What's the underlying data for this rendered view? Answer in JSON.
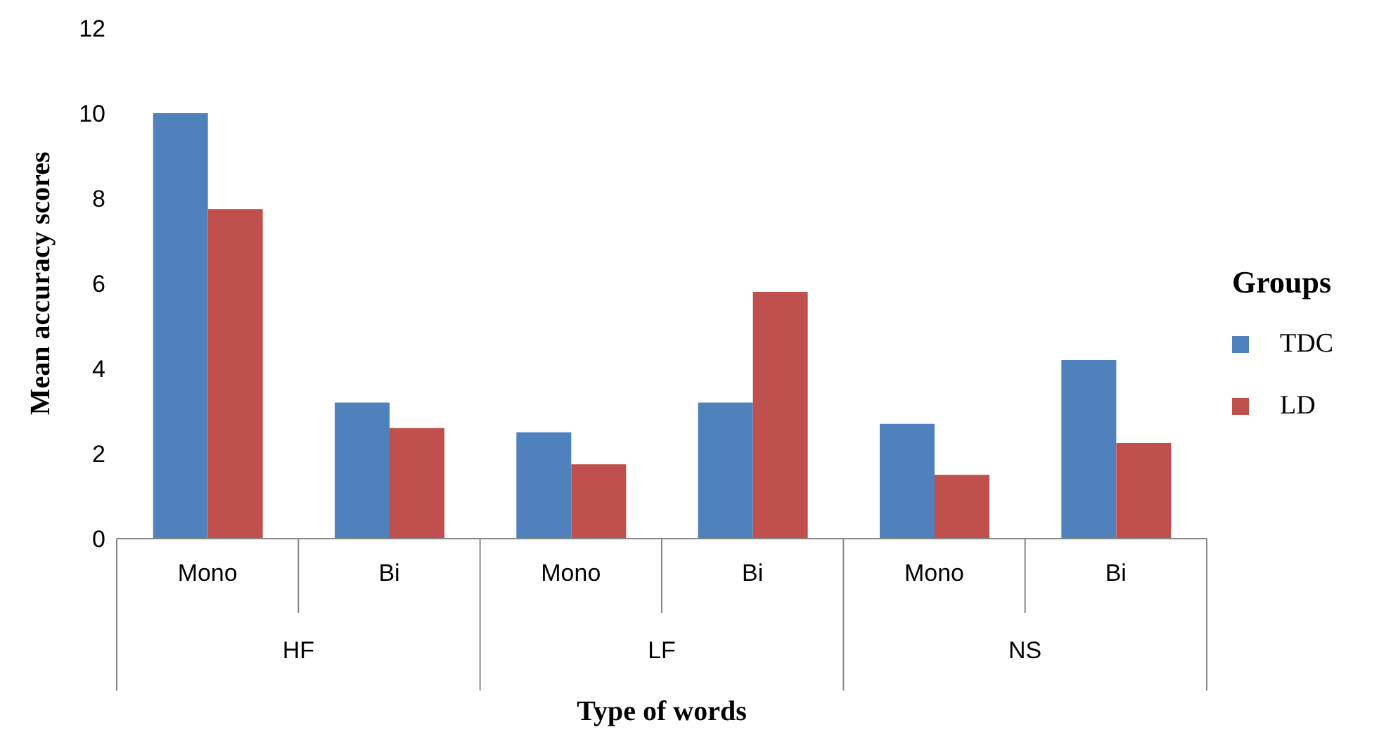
{
  "chart_data": {
    "type": "bar",
    "xlabel": "Type of words",
    "ylabel": "Mean accuracy scores",
    "legend_title": "Groups",
    "legend": "right",
    "categories": [
      "Mono",
      "Bi",
      "Mono",
      "Bi",
      "Mono",
      "Bi"
    ],
    "annotations": [
      "HF",
      "LF",
      "NS"
    ],
    "series": [
      {
        "name": "TDC",
        "color": "#4f81bd",
        "values": [
          10,
          3.2,
          2.5,
          3.2,
          2.7,
          4.2
        ]
      },
      {
        "name": "LD",
        "color": "#c0504d",
        "values": [
          7.75,
          2.6,
          1.75,
          5.8,
          1.5,
          2.25
        ]
      }
    ],
    "ylim": [
      0,
      12
    ],
    "yticks": [
      0,
      2,
      4,
      6,
      8,
      10,
      12
    ]
  }
}
